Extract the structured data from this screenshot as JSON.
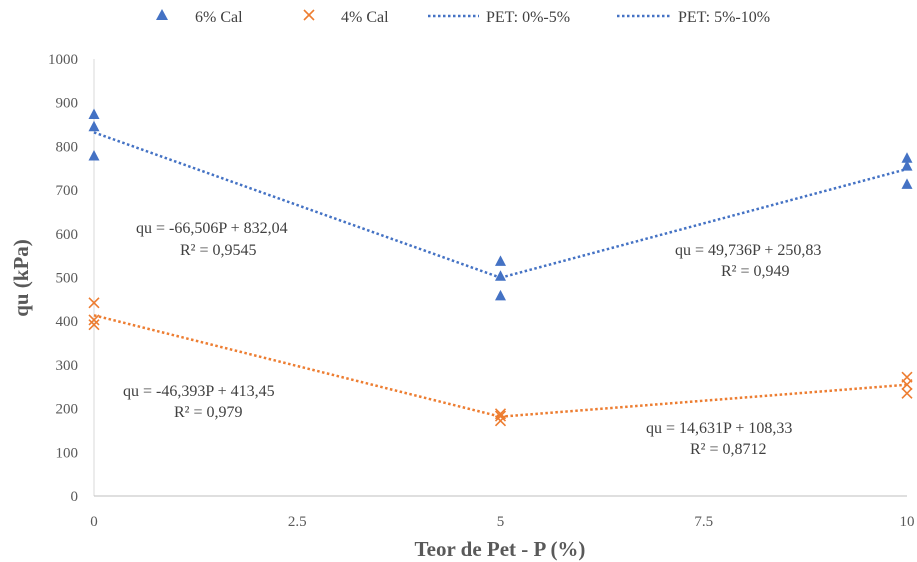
{
  "chart_data": {
    "type": "scatter",
    "xlabel": "Teor de Pet - P (%)",
    "ylabel": "qu (kPa)",
    "xlim": [
      0,
      10
    ],
    "ylim": [
      0,
      1000
    ],
    "x_ticks": [
      "0",
      "2.5",
      "5",
      "7.5",
      "10"
    ],
    "y_ticks": [
      "0",
      "100",
      "200",
      "300",
      "400",
      "500",
      "600",
      "700",
      "800",
      "900",
      "1000"
    ],
    "grid": false,
    "legend_position": "top",
    "series": [
      {
        "name": "6% Cal",
        "marker": "triangle",
        "color": "#4472C4",
        "points": [
          [
            0,
            873
          ],
          [
            0,
            845
          ],
          [
            0,
            778
          ],
          [
            5,
            537
          ],
          [
            5,
            503
          ],
          [
            5,
            458
          ],
          [
            10,
            773
          ],
          [
            10,
            755
          ],
          [
            10,
            713
          ]
        ]
      },
      {
        "name": "4% Cal",
        "marker": "x",
        "color": "#ED7D31",
        "points": [
          [
            0,
            442
          ],
          [
            0,
            403
          ],
          [
            0,
            392
          ],
          [
            5,
            188
          ],
          [
            5,
            183
          ],
          [
            5,
            172
          ],
          [
            10,
            272
          ],
          [
            10,
            255
          ],
          [
            10,
            235
          ]
        ]
      }
    ],
    "trendlines": [
      {
        "name": "PET: 0%-5%",
        "color": "#4472C4",
        "slope": -66.506,
        "intercept": 832.04,
        "x_range": [
          0,
          5
        ]
      },
      {
        "name": "PET: 5%-10%",
        "color": "#4472C4",
        "slope": 49.736,
        "intercept": 250.83,
        "x_range": [
          5,
          10
        ]
      },
      {
        "name": "",
        "color": "#ED7D31",
        "slope": -46.393,
        "intercept": 413.45,
        "x_range": [
          0,
          5
        ]
      },
      {
        "name": "",
        "color": "#ED7D31",
        "slope": 14.631,
        "intercept": 108.33,
        "x_range": [
          5,
          10
        ]
      }
    ],
    "annotations": [
      {
        "line1": "qu = -66,506P + 832,04",
        "line2": "R² = 0,9545"
      },
      {
        "line1": "qu = 49,736P + 250,83",
        "line2": "R² = 0,949"
      },
      {
        "line1": "qu = -46,393P + 413,45",
        "line2": "R² = 0,979"
      },
      {
        "line1": "qu = 14,631P + 108,33",
        "line2": "R² = 0,8712"
      }
    ]
  }
}
